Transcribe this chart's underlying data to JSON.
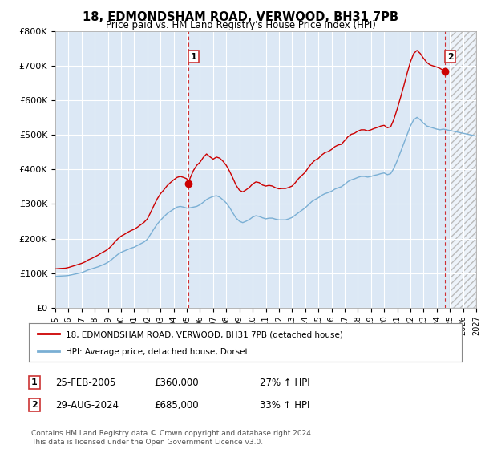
{
  "title": "18, EDMONDSHAM ROAD, VERWOOD, BH31 7PB",
  "subtitle": "Price paid vs. HM Land Registry's House Price Index (HPI)",
  "ylim": [
    0,
    800000
  ],
  "yticks": [
    0,
    100000,
    200000,
    300000,
    400000,
    500000,
    600000,
    700000,
    800000
  ],
  "ytick_labels": [
    "£0",
    "£100K",
    "£200K",
    "£300K",
    "£400K",
    "£500K",
    "£600K",
    "£700K",
    "£800K"
  ],
  "background_color": "#ffffff",
  "plot_bg_color": "#dce8f5",
  "grid_color": "#ffffff",
  "red_color": "#cc0000",
  "blue_color": "#7aafd4",
  "marker1_date": "25-FEB-2005",
  "marker1_price": "£360,000",
  "marker1_hpi": "27% ↑ HPI",
  "marker2_date": "29-AUG-2024",
  "marker2_price": "£685,000",
  "marker2_hpi": "33% ↑ HPI",
  "legend_label1": "18, EDMONDSHAM ROAD, VERWOOD, BH31 7PB (detached house)",
  "legend_label2": "HPI: Average price, detached house, Dorset",
  "footnote": "Contains HM Land Registry data © Crown copyright and database right 2024.\nThis data is licensed under the Open Government Licence v3.0.",
  "hpi_x": [
    1995.0,
    1995.25,
    1995.5,
    1995.75,
    1996.0,
    1996.25,
    1996.5,
    1996.75,
    1997.0,
    1997.25,
    1997.5,
    1997.75,
    1998.0,
    1998.25,
    1998.5,
    1998.75,
    1999.0,
    1999.25,
    1999.5,
    1999.75,
    2000.0,
    2000.25,
    2000.5,
    2000.75,
    2001.0,
    2001.25,
    2001.5,
    2001.75,
    2002.0,
    2002.25,
    2002.5,
    2002.75,
    2003.0,
    2003.25,
    2003.5,
    2003.75,
    2004.0,
    2004.25,
    2004.5,
    2004.75,
    2005.0,
    2005.25,
    2005.5,
    2005.75,
    2006.0,
    2006.25,
    2006.5,
    2006.75,
    2007.0,
    2007.25,
    2007.5,
    2007.75,
    2008.0,
    2008.25,
    2008.5,
    2008.75,
    2009.0,
    2009.25,
    2009.5,
    2009.75,
    2010.0,
    2010.25,
    2010.5,
    2010.75,
    2011.0,
    2011.25,
    2011.5,
    2011.75,
    2012.0,
    2012.25,
    2012.5,
    2012.75,
    2013.0,
    2013.25,
    2013.5,
    2013.75,
    2014.0,
    2014.25,
    2014.5,
    2014.75,
    2015.0,
    2015.25,
    2015.5,
    2015.75,
    2016.0,
    2016.25,
    2016.5,
    2016.75,
    2017.0,
    2017.25,
    2017.5,
    2017.75,
    2018.0,
    2018.25,
    2018.5,
    2018.75,
    2019.0,
    2019.25,
    2019.5,
    2019.75,
    2020.0,
    2020.25,
    2020.5,
    2020.75,
    2021.0,
    2021.25,
    2021.5,
    2021.75,
    2022.0,
    2022.25,
    2022.5,
    2022.75,
    2023.0,
    2023.25,
    2023.5,
    2023.75,
    2024.0,
    2024.25,
    2024.5,
    2024.75,
    2025.0,
    2025.25,
    2025.5,
    2025.75,
    2026.0,
    2026.25,
    2026.5,
    2026.75,
    2027.0
  ],
  "hpi_y": [
    90000,
    91000,
    91500,
    92000,
    93000,
    95000,
    97000,
    99000,
    101000,
    105000,
    109000,
    112000,
    115000,
    118000,
    122000,
    126000,
    131000,
    138000,
    146000,
    154000,
    160000,
    164000,
    168000,
    172000,
    175000,
    180000,
    185000,
    190000,
    198000,
    213000,
    228000,
    242000,
    253000,
    263000,
    272000,
    279000,
    285000,
    291000,
    293000,
    291000,
    288000,
    289000,
    291000,
    293000,
    298000,
    305000,
    313000,
    318000,
    322000,
    324000,
    320000,
    312000,
    303000,
    290000,
    274000,
    259000,
    250000,
    246000,
    250000,
    255000,
    262000,
    266000,
    264000,
    260000,
    257000,
    259000,
    259000,
    256000,
    254000,
    254000,
    254000,
    257000,
    261000,
    268000,
    275000,
    282000,
    289000,
    298000,
    307000,
    313000,
    318000,
    325000,
    330000,
    333000,
    337000,
    343000,
    347000,
    350000,
    357000,
    365000,
    370000,
    373000,
    377000,
    380000,
    380000,
    378000,
    380000,
    383000,
    385000,
    388000,
    390000,
    385000,
    388000,
    404000,
    426000,
    451000,
    476000,
    501000,
    526000,
    544000,
    551000,
    544000,
    534000,
    526000,
    523000,
    520000,
    517000,
    515000,
    517000,
    515000,
    513000,
    511000,
    509000,
    507000,
    505000,
    503000,
    501000,
    499000,
    497000
  ],
  "red_x": [
    1995.0,
    1995.25,
    1995.5,
    1995.75,
    1996.0,
    1996.25,
    1996.5,
    1996.75,
    1997.0,
    1997.25,
    1997.5,
    1997.75,
    1998.0,
    1998.25,
    1998.5,
    1998.75,
    1999.0,
    1999.25,
    1999.5,
    1999.75,
    2000.0,
    2000.25,
    2000.5,
    2000.75,
    2001.0,
    2001.25,
    2001.5,
    2001.75,
    2002.0,
    2002.25,
    2002.5,
    2002.75,
    2003.0,
    2003.25,
    2003.5,
    2003.75,
    2004.0,
    2004.25,
    2004.5,
    2004.75,
    2005.0,
    2005.12,
    2005.25,
    2005.5,
    2005.75,
    2006.0,
    2006.25,
    2006.5,
    2006.75,
    2007.0,
    2007.25,
    2007.5,
    2007.75,
    2008.0,
    2008.25,
    2008.5,
    2008.75,
    2009.0,
    2009.25,
    2009.5,
    2009.75,
    2010.0,
    2010.25,
    2010.5,
    2010.75,
    2011.0,
    2011.25,
    2011.5,
    2011.75,
    2012.0,
    2012.25,
    2012.5,
    2012.75,
    2013.0,
    2013.25,
    2013.5,
    2013.75,
    2014.0,
    2014.25,
    2014.5,
    2014.75,
    2015.0,
    2015.25,
    2015.5,
    2015.75,
    2016.0,
    2016.25,
    2016.5,
    2016.75,
    2017.0,
    2017.25,
    2017.5,
    2017.75,
    2018.0,
    2018.25,
    2018.5,
    2018.75,
    2019.0,
    2019.25,
    2019.5,
    2019.75,
    2020.0,
    2020.25,
    2020.5,
    2020.75,
    2021.0,
    2021.25,
    2021.5,
    2021.75,
    2022.0,
    2022.25,
    2022.5,
    2022.75,
    2023.0,
    2023.25,
    2023.5,
    2023.75,
    2024.0,
    2024.25,
    2024.5,
    2024.65,
    2024.75
  ],
  "red_y": [
    112000,
    113000,
    113500,
    114000,
    116000,
    119000,
    122000,
    125000,
    128000,
    132000,
    138000,
    142000,
    147000,
    152000,
    158000,
    163000,
    169000,
    178000,
    189000,
    199000,
    207000,
    212000,
    218000,
    223000,
    227000,
    233000,
    240000,
    247000,
    257000,
    276000,
    296000,
    315000,
    330000,
    341000,
    353000,
    362000,
    370000,
    377000,
    380000,
    377000,
    373000,
    360000,
    375000,
    397000,
    412000,
    421000,
    435000,
    445000,
    437000,
    430000,
    436000,
    433000,
    424000,
    412000,
    395000,
    375000,
    354000,
    340000,
    335000,
    341000,
    348000,
    358000,
    364000,
    362000,
    355000,
    352000,
    354000,
    352000,
    347000,
    344000,
    345000,
    345000,
    348000,
    352000,
    362000,
    374000,
    383000,
    392000,
    406000,
    418000,
    427000,
    432000,
    442000,
    449000,
    452000,
    458000,
    466000,
    471000,
    473000,
    484000,
    495000,
    502000,
    505000,
    511000,
    515000,
    515000,
    512000,
    515000,
    519000,
    522000,
    526000,
    528000,
    521000,
    524000,
    546000,
    576000,
    609000,
    643000,
    679000,
    712000,
    736000,
    745000,
    736000,
    722000,
    710000,
    703000,
    700000,
    697000,
    693000,
    687000,
    685000,
    683000
  ],
  "marker1_x": 2005.12,
  "marker1_y": 360000,
  "marker2_x": 2024.65,
  "marker2_y": 685000,
  "hatch_start": 2025.0,
  "xlim": [
    1995,
    2027
  ],
  "xticks": [
    1995,
    1996,
    1997,
    1998,
    1999,
    2000,
    2001,
    2002,
    2003,
    2004,
    2005,
    2006,
    2007,
    2008,
    2009,
    2010,
    2011,
    2012,
    2013,
    2014,
    2015,
    2016,
    2017,
    2018,
    2019,
    2020,
    2021,
    2022,
    2023,
    2024,
    2025,
    2026,
    2027
  ]
}
